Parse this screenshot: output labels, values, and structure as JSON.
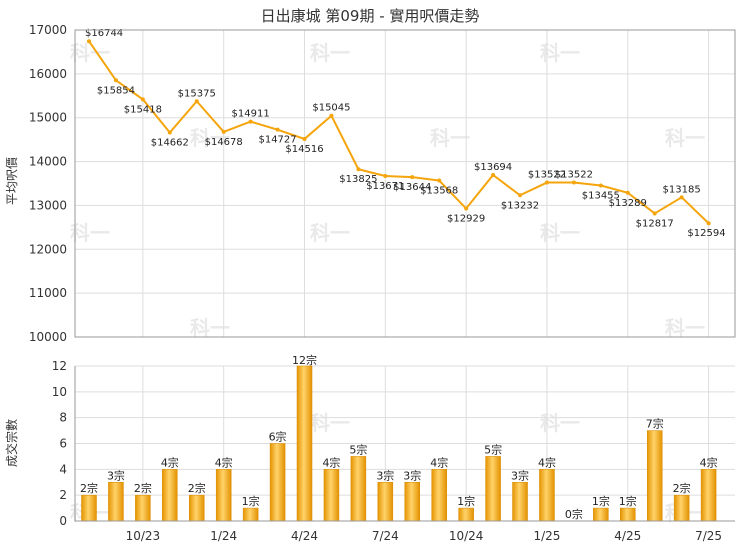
{
  "chart_data": [
    {
      "type": "line",
      "title": "日出康城 第09期 - 實用呎價走勢",
      "ylabel": "平均呎價",
      "ylim": [
        10000,
        17000
      ],
      "yticks": [
        10000,
        11000,
        12000,
        13000,
        14000,
        15000,
        16000,
        17000
      ],
      "grid": true,
      "color": "#f5a50b",
      "points": [
        {
          "i": 0,
          "value": 16744,
          "label": "$16744"
        },
        {
          "i": 1,
          "value": 15854,
          "label": "$15854"
        },
        {
          "i": 2,
          "value": 15418,
          "label": "$15418"
        },
        {
          "i": 3,
          "value": 14662,
          "label": "$14662"
        },
        {
          "i": 4,
          "value": 15375,
          "label": "$15375"
        },
        {
          "i": 5,
          "value": 14678,
          "label": "$14678"
        },
        {
          "i": 6,
          "value": 14911,
          "label": "$14911"
        },
        {
          "i": 7,
          "value": 14727,
          "label": "$14727"
        },
        {
          "i": 8,
          "value": 14516,
          "label": "$14516"
        },
        {
          "i": 9,
          "value": 15045,
          "label": "$15045"
        },
        {
          "i": 10,
          "value": 13825,
          "label": "$13825"
        },
        {
          "i": 11,
          "value": 13671,
          "label": "$13671"
        },
        {
          "i": 12,
          "value": 13644,
          "label": "$13644"
        },
        {
          "i": 13,
          "value": 13568,
          "label": "$13568"
        },
        {
          "i": 14,
          "value": 12929,
          "label": "$12929"
        },
        {
          "i": 15,
          "value": 13694,
          "label": "$13694"
        },
        {
          "i": 16,
          "value": 13232,
          "label": "$13232"
        },
        {
          "i": 17,
          "value": 13522,
          "label": "$13522"
        },
        {
          "i": 18,
          "value": 13522,
          "label": "$13522"
        },
        {
          "i": 19,
          "value": 13455,
          "label": "$13455"
        },
        {
          "i": 20,
          "value": 13289,
          "label": "$13289"
        },
        {
          "i": 21,
          "value": 12817,
          "label": "$12817"
        },
        {
          "i": 22,
          "value": 13185,
          "label": "$13185"
        },
        {
          "i": 23,
          "value": 12594,
          "label": "$12594"
        }
      ]
    },
    {
      "type": "bar",
      "ylabel": "成交宗數",
      "ylim": [
        0,
        12
      ],
      "yticks": [
        0,
        2,
        4,
        6,
        8,
        10,
        12
      ],
      "grid": true,
      "color": "#f5a50b",
      "values": [
        2,
        3,
        2,
        4,
        2,
        4,
        1,
        6,
        12,
        4,
        5,
        3,
        3,
        4,
        1,
        5,
        3,
        4,
        0,
        1,
        1,
        7,
        2,
        4
      ],
      "labels": [
        "2宗",
        "3宗",
        "2宗",
        "4宗",
        "2宗",
        "4宗",
        "1宗",
        "6宗",
        "12宗",
        "4宗",
        "5宗",
        "3宗",
        "3宗",
        "4宗",
        "1宗",
        "5宗",
        "3宗",
        "4宗",
        "0宗",
        "1宗",
        "1宗",
        "7宗",
        "2宗",
        "4宗"
      ]
    }
  ],
  "x_axis": {
    "ticks": [
      {
        "i": 2,
        "label": "10/23"
      },
      {
        "i": 5,
        "label": "1/24"
      },
      {
        "i": 8,
        "label": "4/24"
      },
      {
        "i": 11,
        "label": "7/24"
      },
      {
        "i": 14,
        "label": "10/24"
      },
      {
        "i": 17,
        "label": "1/25"
      },
      {
        "i": 20,
        "label": "4/25"
      },
      {
        "i": 23,
        "label": "7/25"
      }
    ]
  },
  "watermark": "科一"
}
